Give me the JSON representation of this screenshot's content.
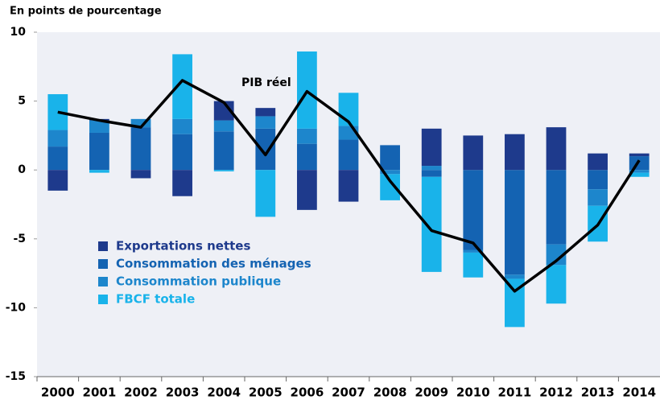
{
  "chart_data": {
    "type": "bar",
    "subtitle": "En points de pourcentage",
    "categories": [
      "2000",
      "2001",
      "2002",
      "2003",
      "2004",
      "2005",
      "2006",
      "2007",
      "2008",
      "2009",
      "2010",
      "2011",
      "2012",
      "2013",
      "2014"
    ],
    "series": [
      {
        "name": "Exportations nettes",
        "color": "#1e3a8c",
        "values": [
          -1.5,
          0.1,
          -0.6,
          -1.9,
          1.4,
          0.6,
          -2.9,
          -2.3,
          0,
          2.7,
          2.5,
          2.6,
          3.1,
          1.2,
          0.2
        ]
      },
      {
        "name": "Consommation des ménages",
        "color": "#1463b2",
        "values": [
          1.7,
          2.7,
          3.1,
          2.6,
          2.8,
          3.0,
          1.9,
          2.2,
          1.8,
          -0.5,
          -5.8,
          -7.6,
          -5.4,
          -1.4,
          1.0
        ]
      },
      {
        "name": "Consommation publique",
        "color": "#1d86cc",
        "values": [
          1.2,
          0.9,
          0.6,
          1.1,
          0.8,
          0.9,
          1.1,
          1.0,
          -0.3,
          0.3,
          -0.2,
          -0.3,
          -1.5,
          -1.2,
          -0.2
        ]
      },
      {
        "name": "FBCF totale",
        "color": "#19b3ea",
        "values": [
          2.6,
          -0.2,
          0,
          4.7,
          -0.1,
          -3.4,
          5.6,
          2.4,
          -1.9,
          -6.9,
          -1.8,
          -3.5,
          -2.8,
          -2.6,
          -0.3
        ]
      },
      {
        "name": "PIB réel",
        "type": "line",
        "color": "#000000",
        "values": [
          4.2,
          3.6,
          3.1,
          6.5,
          4.9,
          1.1,
          5.7,
          3.5,
          -0.8,
          -4.4,
          -5.3,
          -8.8,
          -6.6,
          -4.0,
          0.7
        ]
      }
    ],
    "ylim": [
      -15,
      10
    ],
    "yticks": [
      10,
      5,
      0,
      -5,
      -10,
      -15
    ],
    "grid": false
  }
}
